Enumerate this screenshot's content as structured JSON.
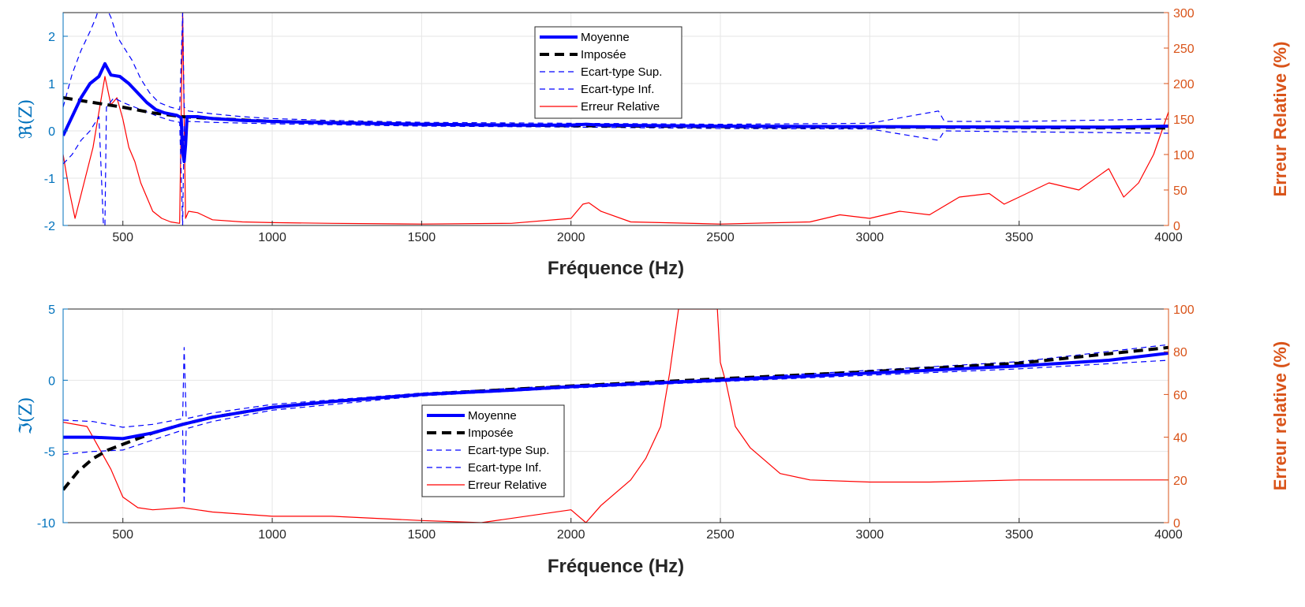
{
  "colors": {
    "mean": "#0000FF",
    "std": "#0000FF",
    "imposed": "#000000",
    "error": "#FF0000",
    "left_axis": "#0072BD",
    "right_axis": "#D95319",
    "grid": "#E6E6E6"
  },
  "chart_data": [
    {
      "type": "line",
      "id": "real",
      "xlabel": "Fréquence (Hz)",
      "ylabel": "ℜ(Z)",
      "ylabel_right": "Erreur Relative (%)",
      "xlim": [
        300,
        4000
      ],
      "ylim": [
        -2,
        2.5
      ],
      "ylim_right": [
        0,
        300
      ],
      "xticks": [
        500,
        1000,
        1500,
        2000,
        2500,
        3000,
        3500,
        4000
      ],
      "yticks": [
        -2,
        -1,
        0,
        1,
        2
      ],
      "yticks_right": [
        0,
        50,
        100,
        150,
        200,
        250,
        300
      ],
      "grid": true,
      "legend_position": "top-center",
      "series": [
        {
          "name": "Moyenne",
          "axis": "left",
          "style": "solid-thick",
          "points": [
            [
              300,
              -0.1
            ],
            [
              330,
              0.3
            ],
            [
              360,
              0.7
            ],
            [
              390,
              1.0
            ],
            [
              420,
              1.15
            ],
            [
              440,
              1.42
            ],
            [
              460,
              1.18
            ],
            [
              490,
              1.15
            ],
            [
              520,
              1.0
            ],
            [
              550,
              0.8
            ],
            [
              580,
              0.6
            ],
            [
              610,
              0.45
            ],
            [
              640,
              0.38
            ],
            [
              680,
              0.33
            ],
            [
              695,
              0.28
            ],
            [
              700,
              -0.45
            ],
            [
              705,
              -0.65
            ],
            [
              710,
              -0.3
            ],
            [
              715,
              0.3
            ],
            [
              750,
              0.3
            ],
            [
              800,
              0.26
            ],
            [
              900,
              0.22
            ],
            [
              1000,
              0.2
            ],
            [
              1200,
              0.17
            ],
            [
              1500,
              0.14
            ],
            [
              1800,
              0.12
            ],
            [
              2000,
              0.12
            ],
            [
              2050,
              0.14
            ],
            [
              2100,
              0.12
            ],
            [
              2500,
              0.1
            ],
            [
              3000,
              0.09
            ],
            [
              3500,
              0.08
            ],
            [
              3800,
              0.08
            ],
            [
              4000,
              0.1
            ]
          ]
        },
        {
          "name": "Imposée",
          "axis": "left",
          "style": "dashed-thick",
          "points": [
            [
              300,
              0.7
            ],
            [
              400,
              0.6
            ],
            [
              500,
              0.5
            ],
            [
              600,
              0.38
            ],
            [
              700,
              0.3
            ],
            [
              800,
              0.26
            ],
            [
              1000,
              0.2
            ],
            [
              1500,
              0.14
            ],
            [
              2000,
              0.11
            ],
            [
              2500,
              0.09
            ],
            [
              3000,
              0.08
            ],
            [
              3500,
              0.07
            ],
            [
              4000,
              0.06
            ]
          ]
        },
        {
          "name": "Ecart-type Sup.",
          "axis": "left",
          "style": "dashed-thin",
          "points": [
            [
              300,
              0.5
            ],
            [
              330,
              1.2
            ],
            [
              360,
              1.7
            ],
            [
              390,
              2.1
            ],
            [
              410,
              2.4
            ],
            [
              430,
              2.8
            ],
            [
              445,
              2.6
            ],
            [
              460,
              2.4
            ],
            [
              480,
              2.0
            ],
            [
              500,
              1.8
            ],
            [
              530,
              1.5
            ],
            [
              560,
              1.1
            ],
            [
              590,
              0.8
            ],
            [
              620,
              0.6
            ],
            [
              660,
              0.5
            ],
            [
              690,
              0.45
            ],
            [
              700,
              2.5
            ],
            [
              705,
              0.5
            ],
            [
              720,
              0.42
            ],
            [
              800,
              0.36
            ],
            [
              900,
              0.3
            ],
            [
              1000,
              0.26
            ],
            [
              1200,
              0.22
            ],
            [
              1500,
              0.18
            ],
            [
              2000,
              0.16
            ],
            [
              2500,
              0.14
            ],
            [
              3000,
              0.16
            ],
            [
              3230,
              0.42
            ],
            [
              3250,
              0.2
            ],
            [
              3500,
              0.2
            ],
            [
              4000,
              0.25
            ]
          ]
        },
        {
          "name": "Ecart-type Inf.",
          "axis": "left",
          "style": "dashed-thin",
          "points": [
            [
              300,
              -0.7
            ],
            [
              330,
              -0.5
            ],
            [
              360,
              -0.2
            ],
            [
              390,
              0.0
            ],
            [
              420,
              0.3
            ],
            [
              435,
              -2.0
            ],
            [
              440,
              -2.0
            ],
            [
              445,
              0.5
            ],
            [
              470,
              0.7
            ],
            [
              500,
              0.6
            ],
            [
              540,
              0.5
            ],
            [
              580,
              0.4
            ],
            [
              620,
              0.3
            ],
            [
              660,
              0.22
            ],
            [
              690,
              0.18
            ],
            [
              700,
              -2.0
            ],
            [
              705,
              0.15
            ],
            [
              720,
              0.2
            ],
            [
              800,
              0.18
            ],
            [
              1000,
              0.15
            ],
            [
              1500,
              0.1
            ],
            [
              2000,
              0.08
            ],
            [
              2500,
              0.05
            ],
            [
              3000,
              0.04
            ],
            [
              3230,
              -0.2
            ],
            [
              3250,
              0.0
            ],
            [
              3500,
              -0.02
            ],
            [
              4000,
              -0.05
            ]
          ]
        },
        {
          "name": "Erreur Relative",
          "axis": "right",
          "style": "solid-thin",
          "points": [
            [
              300,
              100
            ],
            [
              320,
              50
            ],
            [
              340,
              10
            ],
            [
              370,
              60
            ],
            [
              400,
              110
            ],
            [
              420,
              160
            ],
            [
              440,
              210
            ],
            [
              460,
              170
            ],
            [
              480,
              180
            ],
            [
              500,
              150
            ],
            [
              520,
              110
            ],
            [
              540,
              90
            ],
            [
              560,
              60
            ],
            [
              580,
              40
            ],
            [
              600,
              20
            ],
            [
              630,
              10
            ],
            [
              660,
              5
            ],
            [
              690,
              3
            ],
            [
              700,
              300
            ],
            [
              710,
              10
            ],
            [
              720,
              20
            ],
            [
              750,
              18
            ],
            [
              800,
              8
            ],
            [
              900,
              5
            ],
            [
              1000,
              4
            ],
            [
              1200,
              3
            ],
            [
              1500,
              2
            ],
            [
              1800,
              3
            ],
            [
              2000,
              10
            ],
            [
              2040,
              30
            ],
            [
              2060,
              32
            ],
            [
              2100,
              20
            ],
            [
              2200,
              5
            ],
            [
              2500,
              2
            ],
            [
              2800,
              5
            ],
            [
              2900,
              15
            ],
            [
              3000,
              10
            ],
            [
              3100,
              20
            ],
            [
              3200,
              15
            ],
            [
              3300,
              40
            ],
            [
              3400,
              45
            ],
            [
              3450,
              30
            ],
            [
              3500,
              40
            ],
            [
              3600,
              60
            ],
            [
              3700,
              50
            ],
            [
              3800,
              80
            ],
            [
              3850,
              40
            ],
            [
              3900,
              60
            ],
            [
              3950,
              100
            ],
            [
              4000,
              160
            ]
          ]
        }
      ]
    },
    {
      "type": "line",
      "id": "imag",
      "xlabel": "Fréquence (Hz)",
      "ylabel": "ℑ(Z)",
      "ylabel_right": "Erreur relative (%)",
      "xlim": [
        300,
        4000
      ],
      "ylim": [
        -10,
        5
      ],
      "ylim_right": [
        0,
        100
      ],
      "xticks": [
        500,
        1000,
        1500,
        2000,
        2500,
        3000,
        3500,
        4000
      ],
      "yticks": [
        -10,
        -5,
        0,
        5
      ],
      "yticks_right": [
        0,
        20,
        40,
        60,
        80,
        100
      ],
      "grid": true,
      "legend_position": "center-left",
      "series": [
        {
          "name": "Moyenne",
          "axis": "left",
          "style": "solid-thick",
          "points": [
            [
              300,
              -4.0
            ],
            [
              400,
              -4.0
            ],
            [
              500,
              -4.1
            ],
            [
              600,
              -3.7
            ],
            [
              700,
              -3.1
            ],
            [
              800,
              -2.6
            ],
            [
              1000,
              -1.9
            ],
            [
              1200,
              -1.5
            ],
            [
              1500,
              -1.0
            ],
            [
              1800,
              -0.7
            ],
            [
              2000,
              -0.45
            ],
            [
              2500,
              0.0
            ],
            [
              3000,
              0.5
            ],
            [
              3500,
              1.0
            ],
            [
              3800,
              1.4
            ],
            [
              4000,
              1.9
            ]
          ]
        },
        {
          "name": "Imposée",
          "axis": "left",
          "style": "dashed-thick",
          "points": [
            [
              300,
              -7.7
            ],
            [
              350,
              -6.4
            ],
            [
              400,
              -5.5
            ],
            [
              450,
              -4.9
            ],
            [
              500,
              -4.5
            ],
            [
              600,
              -3.7
            ],
            [
              700,
              -3.1
            ],
            [
              800,
              -2.6
            ],
            [
              1000,
              -1.9
            ],
            [
              1200,
              -1.5
            ],
            [
              1500,
              -1.0
            ],
            [
              2000,
              -0.4
            ],
            [
              2500,
              0.1
            ],
            [
              3000,
              0.6
            ],
            [
              3500,
              1.2
            ],
            [
              4000,
              2.3
            ]
          ]
        },
        {
          "name": "Ecart-type Sup.",
          "axis": "left",
          "style": "dashed-thin",
          "points": [
            [
              300,
              -2.8
            ],
            [
              400,
              -2.9
            ],
            [
              500,
              -3.3
            ],
            [
              600,
              -3.1
            ],
            [
              700,
              -2.7
            ],
            [
              705,
              2.3
            ],
            [
              712,
              -2.7
            ],
            [
              800,
              -2.3
            ],
            [
              1000,
              -1.7
            ],
            [
              1500,
              -0.9
            ],
            [
              2000,
              -0.35
            ],
            [
              2500,
              0.1
            ],
            [
              3000,
              0.7
            ],
            [
              3500,
              1.3
            ],
            [
              4000,
              2.5
            ]
          ]
        },
        {
          "name": "Ecart-type Inf.",
          "axis": "left",
          "style": "dashed-thin",
          "points": [
            [
              300,
              -5.2
            ],
            [
              400,
              -5.0
            ],
            [
              500,
              -4.9
            ],
            [
              600,
              -4.2
            ],
            [
              700,
              -3.5
            ],
            [
              705,
              -8.7
            ],
            [
              712,
              -3.4
            ],
            [
              800,
              -2.9
            ],
            [
              1000,
              -2.1
            ],
            [
              1500,
              -1.1
            ],
            [
              2000,
              -0.55
            ],
            [
              2500,
              -0.1
            ],
            [
              3000,
              0.35
            ],
            [
              3500,
              0.8
            ],
            [
              4000,
              1.4
            ]
          ]
        },
        {
          "name": "Erreur Relative",
          "axis": "right",
          "style": "solid-thin",
          "points": [
            [
              300,
              47
            ],
            [
              380,
              45
            ],
            [
              420,
              35
            ],
            [
              460,
              25
            ],
            [
              500,
              12
            ],
            [
              550,
              7
            ],
            [
              600,
              6
            ],
            [
              700,
              7
            ],
            [
              800,
              5
            ],
            [
              1000,
              3
            ],
            [
              1200,
              3
            ],
            [
              1500,
              1
            ],
            [
              1700,
              0
            ],
            [
              2000,
              6
            ],
            [
              2050,
              0
            ],
            [
              2100,
              8
            ],
            [
              2200,
              20
            ],
            [
              2250,
              30
            ],
            [
              2300,
              45
            ],
            [
              2330,
              70
            ],
            [
              2360,
              100
            ],
            [
              2490,
              100
            ],
            [
              2500,
              75
            ],
            [
              2520,
              65
            ],
            [
              2550,
              45
            ],
            [
              2600,
              35
            ],
            [
              2700,
              23
            ],
            [
              2800,
              20
            ],
            [
              3000,
              19
            ],
            [
              3200,
              19
            ],
            [
              3500,
              20
            ],
            [
              3700,
              20
            ],
            [
              4000,
              20
            ]
          ]
        }
      ],
      "annotations": []
    }
  ]
}
